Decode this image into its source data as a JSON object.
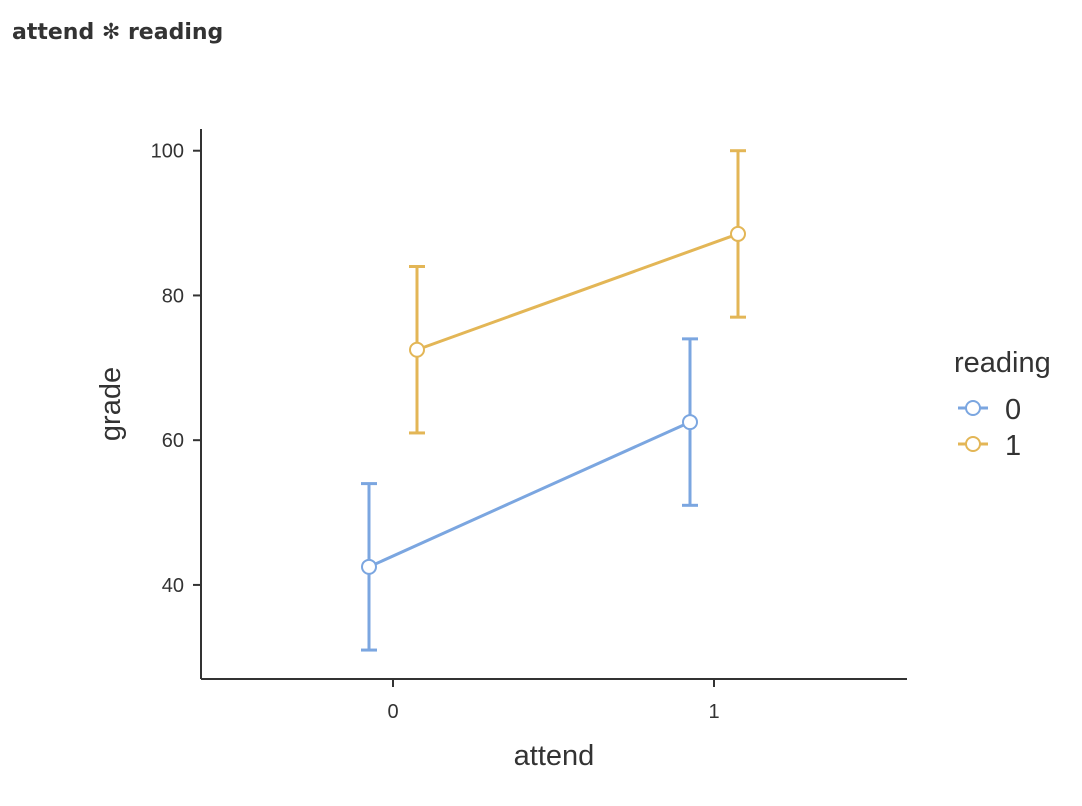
{
  "title": "attend ✻ reading",
  "chart_data": {
    "type": "line",
    "title": "attend ✻ reading",
    "xlabel": "attend",
    "ylabel": "grade",
    "x_ticks": [
      "0",
      "1"
    ],
    "y_ticks": [
      "40",
      "60",
      "80",
      "100"
    ],
    "ylim": [
      27,
      103
    ],
    "grid": false,
    "legend": {
      "title": "reading",
      "position": "right"
    },
    "series": [
      {
        "name": "0",
        "color": "#7ba6e0",
        "points": [
          {
            "x": "0",
            "y": 42.5,
            "lower": 31,
            "upper": 54
          },
          {
            "x": "1",
            "y": 62.5,
            "lower": 51,
            "upper": 74
          }
        ]
      },
      {
        "name": "1",
        "color": "#e3b656",
        "points": [
          {
            "x": "0",
            "y": 72.5,
            "lower": 61,
            "upper": 84
          },
          {
            "x": "1",
            "y": 88.5,
            "lower": 77,
            "upper": 100
          }
        ]
      }
    ]
  }
}
